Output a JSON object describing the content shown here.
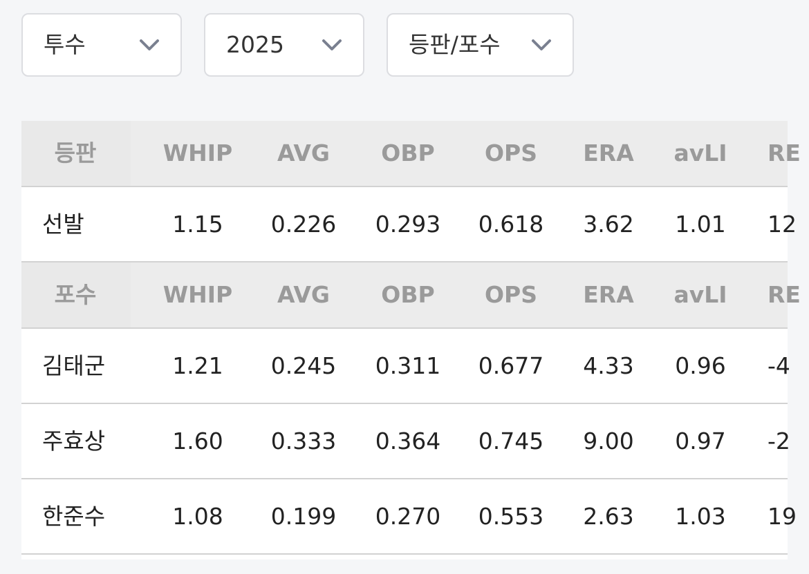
{
  "filters": [
    "투수",
    "2025",
    "등판/포수"
  ],
  "tables": [
    {
      "header": [
        "등판",
        "WHIP",
        "AVG",
        "OBP",
        "OPS",
        "ERA",
        "avLI",
        "RE"
      ],
      "rows": [
        [
          "선발",
          "1.15",
          "0.226",
          "0.293",
          "0.618",
          "3.62",
          "1.01",
          "12"
        ]
      ]
    },
    {
      "header": [
        "포수",
        "WHIP",
        "AVG",
        "OBP",
        "OPS",
        "ERA",
        "avLI",
        "RE"
      ],
      "rows": [
        [
          "김태군",
          "1.21",
          "0.245",
          "0.311",
          "0.677",
          "4.33",
          "0.96",
          "-4"
        ],
        [
          "주효상",
          "1.60",
          "0.333",
          "0.364",
          "0.745",
          "9.00",
          "0.97",
          "-2"
        ],
        [
          "한준수",
          "1.08",
          "0.199",
          "0.270",
          "0.553",
          "2.63",
          "1.03",
          "19"
        ]
      ]
    }
  ]
}
